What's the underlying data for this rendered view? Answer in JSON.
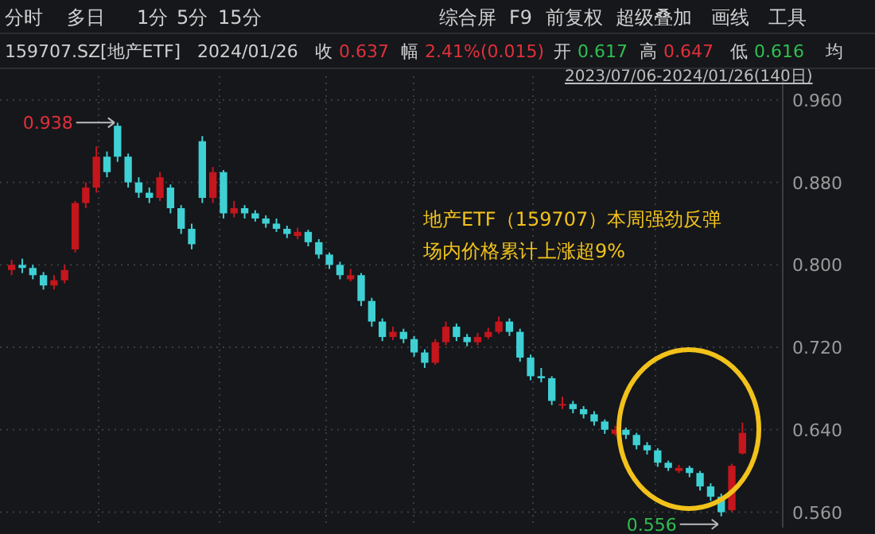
{
  "chart_data": {
    "type": "candlestick",
    "categories": [
      null,
      null,
      null,
      null,
      null,
      null,
      null,
      null,
      null,
      null,
      null,
      null,
      null,
      null,
      null,
      null,
      null,
      null,
      null,
      null,
      null,
      null,
      null,
      null,
      null,
      null,
      null,
      null,
      null,
      null,
      null,
      null,
      null,
      null,
      null,
      null,
      null,
      null,
      null,
      null,
      null,
      null,
      null,
      null,
      null,
      null,
      null,
      null,
      null,
      null,
      null,
      null,
      null,
      null,
      null,
      null,
      null,
      null,
      null,
      null,
      null,
      null,
      null,
      null,
      null,
      null,
      null,
      null,
      null,
      null
    ],
    "ohlc": [
      [
        0.795,
        0.805,
        0.79,
        0.8
      ],
      [
        0.8,
        0.806,
        0.792,
        0.797
      ],
      [
        0.797,
        0.8,
        0.786,
        0.79
      ],
      [
        0.79,
        0.793,
        0.776,
        0.78
      ],
      [
        0.78,
        0.79,
        0.776,
        0.785
      ],
      [
        0.785,
        0.8,
        0.782,
        0.795
      ],
      [
        0.815,
        0.862,
        0.812,
        0.86
      ],
      [
        0.86,
        0.88,
        0.855,
        0.875
      ],
      [
        0.875,
        0.915,
        0.87,
        0.905
      ],
      [
        0.905,
        0.91,
        0.885,
        0.89
      ],
      [
        0.935,
        0.938,
        0.9,
        0.905
      ],
      [
        0.905,
        0.908,
        0.875,
        0.88
      ],
      [
        0.88,
        0.885,
        0.865,
        0.87
      ],
      [
        0.87,
        0.875,
        0.86,
        0.865
      ],
      [
        0.865,
        0.89,
        0.862,
        0.885
      ],
      [
        0.875,
        0.878,
        0.85,
        0.855
      ],
      [
        0.855,
        0.858,
        0.83,
        0.835
      ],
      [
        0.835,
        0.84,
        0.815,
        0.82
      ],
      [
        0.92,
        0.925,
        0.86,
        0.865
      ],
      [
        0.865,
        0.895,
        0.86,
        0.89
      ],
      [
        0.89,
        0.892,
        0.845,
        0.85
      ],
      [
        0.85,
        0.862,
        0.846,
        0.855
      ],
      [
        0.855,
        0.858,
        0.845,
        0.85
      ],
      [
        0.85,
        0.853,
        0.842,
        0.845
      ],
      [
        0.845,
        0.848,
        0.836,
        0.84
      ],
      [
        0.84,
        0.845,
        0.832,
        0.835
      ],
      [
        0.835,
        0.838,
        0.826,
        0.83
      ],
      [
        0.828,
        0.836,
        0.825,
        0.832
      ],
      [
        0.832,
        0.834,
        0.818,
        0.822
      ],
      [
        0.822,
        0.825,
        0.806,
        0.81
      ],
      [
        0.81,
        0.812,
        0.796,
        0.8
      ],
      [
        0.8,
        0.803,
        0.786,
        0.79
      ],
      [
        0.786,
        0.796,
        0.784,
        0.79
      ],
      [
        0.79,
        0.792,
        0.76,
        0.765
      ],
      [
        0.765,
        0.768,
        0.74,
        0.745
      ],
      [
        0.745,
        0.748,
        0.726,
        0.73
      ],
      [
        0.73,
        0.74,
        0.727,
        0.735
      ],
      [
        0.735,
        0.738,
        0.724,
        0.728
      ],
      [
        0.728,
        0.731,
        0.711,
        0.715
      ],
      [
        0.715,
        0.718,
        0.7,
        0.705
      ],
      [
        0.705,
        0.728,
        0.703,
        0.725
      ],
      [
        0.725,
        0.745,
        0.722,
        0.74
      ],
      [
        0.74,
        0.743,
        0.726,
        0.73
      ],
      [
        0.73,
        0.733,
        0.721,
        0.725
      ],
      [
        0.725,
        0.734,
        0.722,
        0.73
      ],
      [
        0.73,
        0.739,
        0.728,
        0.735
      ],
      [
        0.735,
        0.75,
        0.733,
        0.745
      ],
      [
        0.745,
        0.748,
        0.731,
        0.735
      ],
      [
        0.735,
        0.738,
        0.706,
        0.71
      ],
      [
        0.71,
        0.713,
        0.688,
        0.692
      ],
      [
        0.692,
        0.7,
        0.686,
        0.69
      ],
      [
        0.69,
        0.692,
        0.664,
        0.668
      ],
      [
        0.664,
        0.672,
        0.66,
        0.665
      ],
      [
        0.665,
        0.668,
        0.656,
        0.66
      ],
      [
        0.66,
        0.663,
        0.651,
        0.655
      ],
      [
        0.655,
        0.658,
        0.644,
        0.648
      ],
      [
        0.648,
        0.65,
        0.636,
        0.64
      ],
      [
        0.636,
        0.644,
        0.634,
        0.64
      ],
      [
        0.64,
        0.642,
        0.631,
        0.635
      ],
      [
        0.635,
        0.637,
        0.621,
        0.625
      ],
      [
        0.625,
        0.628,
        0.616,
        0.62
      ],
      [
        0.62,
        0.622,
        0.604,
        0.608
      ],
      [
        0.608,
        0.61,
        0.6,
        0.603
      ],
      [
        0.6,
        0.606,
        0.598,
        0.603
      ],
      [
        0.603,
        0.605,
        0.594,
        0.598
      ],
      [
        0.598,
        0.6,
        0.581,
        0.585
      ],
      [
        0.585,
        0.588,
        0.571,
        0.575
      ],
      [
        0.575,
        0.578,
        0.556,
        0.56
      ],
      [
        0.562,
        0.607,
        0.56,
        0.605
      ],
      [
        0.617,
        0.647,
        0.616,
        0.637
      ]
    ],
    "colors": [
      "#c4161c",
      "#3fd0d4",
      "#3fd0d4",
      "#3fd0d4",
      "#c4161c",
      "#c4161c",
      "#c4161c",
      "#c4161c",
      "#c4161c",
      "#3fd0d4",
      "#3fd0d4",
      "#3fd0d4",
      "#3fd0d4",
      "#3fd0d4",
      "#c4161c",
      "#3fd0d4",
      "#3fd0d4",
      "#3fd0d4",
      "#3fd0d4",
      "#c4161c",
      "#3fd0d4",
      "#c4161c",
      "#3fd0d4",
      "#3fd0d4",
      "#3fd0d4",
      "#3fd0d4",
      "#3fd0d4",
      "#c4161c",
      "#3fd0d4",
      "#3fd0d4",
      "#3fd0d4",
      "#3fd0d4",
      "#c4161c",
      "#3fd0d4",
      "#3fd0d4",
      "#3fd0d4",
      "#c4161c",
      "#3fd0d4",
      "#3fd0d4",
      "#3fd0d4",
      "#c4161c",
      "#c4161c",
      "#3fd0d4",
      "#3fd0d4",
      "#c4161c",
      "#c4161c",
      "#c4161c",
      "#3fd0d4",
      "#3fd0d4",
      "#3fd0d4",
      "#3fd0d4",
      "#3fd0d4",
      "#c4161c",
      "#3fd0d4",
      "#3fd0d4",
      "#3fd0d4",
      "#3fd0d4",
      "#c4161c",
      "#3fd0d4",
      "#3fd0d4",
      "#3fd0d4",
      "#3fd0d4",
      "#3fd0d4",
      "#c4161c",
      "#3fd0d4",
      "#3fd0d4",
      "#3fd0d4",
      "#3fd0d4",
      "#c4161c",
      "#c4161c"
    ],
    "ylim": [
      0.545,
      0.983
    ],
    "yticks": [
      {
        "value": 0.56,
        "label": "0.560"
      },
      {
        "value": 0.64,
        "label": "0.640"
      },
      {
        "value": 0.72,
        "label": "0.720"
      },
      {
        "value": 0.8,
        "label": "0.800"
      },
      {
        "value": 0.88,
        "label": "0.880"
      },
      {
        "value": 0.96,
        "label": "0.960"
      }
    ],
    "grid": true,
    "annotations": [
      "分时",
      "多日",
      "1分",
      "5分",
      "15分",
      "综合屏",
      "F9",
      "前复权",
      "超级叠加",
      "画线",
      "工具",
      "159707.SZ[地产ETF]",
      "2024/01/26",
      "收",
      "0.637",
      "幅",
      "2.41%(0.015)",
      "开",
      "0.617",
      "高",
      "0.647",
      "低",
      "0.616",
      "均",
      "2023/07/06-2024/01/26(140日)",
      "地产ETF（159707）本周强劲反弹",
      "场内价格累计上涨超9%",
      "0.938",
      "0.556"
    ]
  }
}
